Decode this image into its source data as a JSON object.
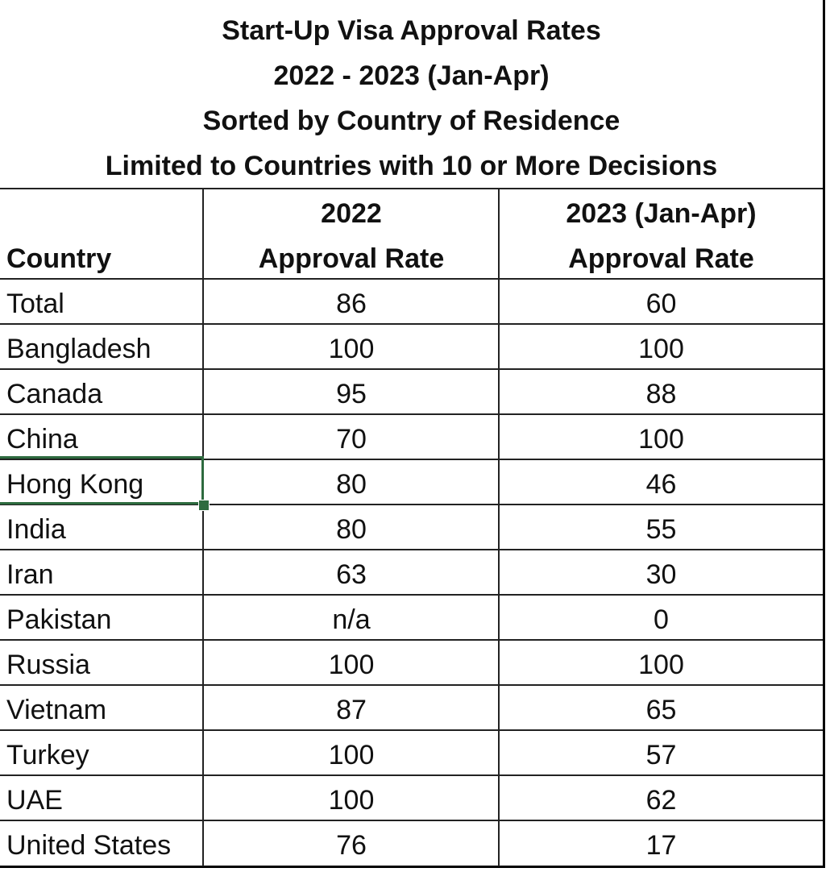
{
  "title_lines": [
    "Start-Up Visa Approval Rates",
    "2022 - 2023 (Jan-Apr)",
    "Sorted by Country of Residence",
    "Limited to Countries with 10 or More Decisions"
  ],
  "header": {
    "country": "Country",
    "col2022_line1": "2022",
    "col2022_line2": "Approval Rate",
    "col2023_line1": "2023 (Jan-Apr)",
    "col2023_line2": "Approval Rate"
  },
  "rows": [
    {
      "country": "Total",
      "y2022": "86",
      "y2023": "60"
    },
    {
      "country": "Bangladesh",
      "y2022": "100",
      "y2023": "100"
    },
    {
      "country": "Canada",
      "y2022": "95",
      "y2023": "88"
    },
    {
      "country": "China",
      "y2022": "70",
      "y2023": "100"
    },
    {
      "country": "Hong Kong",
      "y2022": "80",
      "y2023": "46"
    },
    {
      "country": "India",
      "y2022": "80",
      "y2023": "55"
    },
    {
      "country": "Iran",
      "y2022": "63",
      "y2023": "30"
    },
    {
      "country": "Pakistan",
      "y2022": "n/a",
      "y2023": "0"
    },
    {
      "country": "Russia",
      "y2022": "100",
      "y2023": "100"
    },
    {
      "country": "Vietnam",
      "y2022": "87",
      "y2023": "65"
    },
    {
      "country": "Turkey",
      "y2022": "100",
      "y2023": "57"
    },
    {
      "country": "UAE",
      "y2022": "100",
      "y2023": "62"
    },
    {
      "country": "United States",
      "y2022": "76",
      "y2023": "17"
    }
  ],
  "selected_cell": "Hong Kong",
  "colors": {
    "grid": "#222222",
    "selection": "#2e6b3f"
  }
}
